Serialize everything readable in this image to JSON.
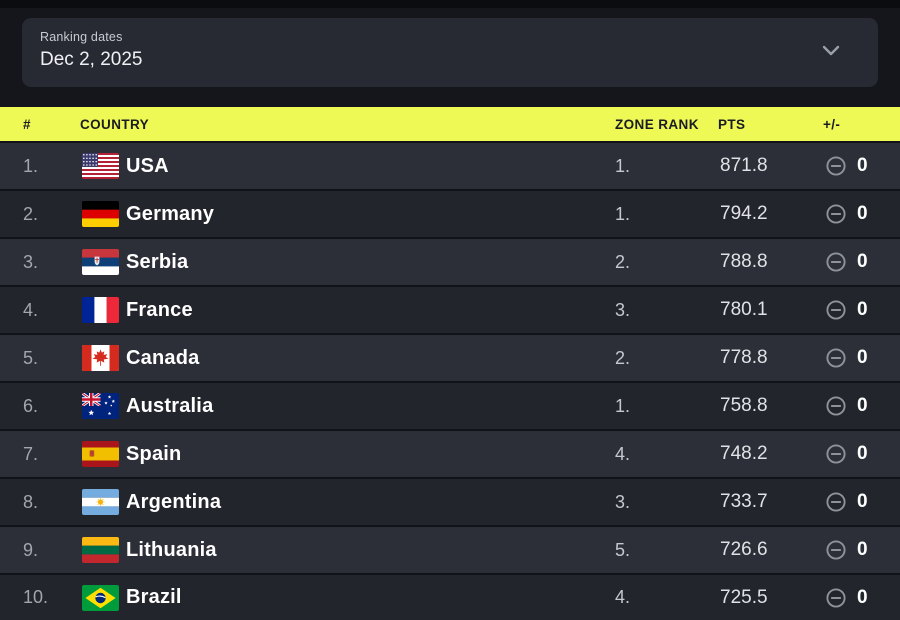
{
  "filter": {
    "label": "Ranking dates",
    "value": "Dec 2, 2025"
  },
  "icons": {
    "dropdown": "chevron-down",
    "change": "minus-circle"
  },
  "colors": {
    "accent_header": "#eef955",
    "row_light": "#2c2f38",
    "row_dark": "#23252c",
    "background": "#14161c"
  },
  "table": {
    "headers": {
      "rank": "#",
      "country": "COUNTRY",
      "zone_rank": "ZONE RANK",
      "pts": "PTS",
      "change": "+/-"
    },
    "rows": [
      {
        "rank": "1.",
        "country": "USA",
        "flag": "us",
        "zone_rank": "1.",
        "pts": "871.8",
        "change": "0"
      },
      {
        "rank": "2.",
        "country": "Germany",
        "flag": "de",
        "zone_rank": "1.",
        "pts": "794.2",
        "change": "0"
      },
      {
        "rank": "3.",
        "country": "Serbia",
        "flag": "rs",
        "zone_rank": "2.",
        "pts": "788.8",
        "change": "0"
      },
      {
        "rank": "4.",
        "country": "France",
        "flag": "fr",
        "zone_rank": "3.",
        "pts": "780.1",
        "change": "0"
      },
      {
        "rank": "5.",
        "country": "Canada",
        "flag": "ca",
        "zone_rank": "2.",
        "pts": "778.8",
        "change": "0"
      },
      {
        "rank": "6.",
        "country": "Australia",
        "flag": "au",
        "zone_rank": "1.",
        "pts": "758.8",
        "change": "0"
      },
      {
        "rank": "7.",
        "country": "Spain",
        "flag": "es",
        "zone_rank": "4.",
        "pts": "748.2",
        "change": "0"
      },
      {
        "rank": "8.",
        "country": "Argentina",
        "flag": "ar",
        "zone_rank": "3.",
        "pts": "733.7",
        "change": "0"
      },
      {
        "rank": "9.",
        "country": "Lithuania",
        "flag": "lt",
        "zone_rank": "5.",
        "pts": "726.6",
        "change": "0"
      },
      {
        "rank": "10.",
        "country": "Brazil",
        "flag": "br",
        "zone_rank": "4.",
        "pts": "725.5",
        "change": "0"
      }
    ]
  }
}
